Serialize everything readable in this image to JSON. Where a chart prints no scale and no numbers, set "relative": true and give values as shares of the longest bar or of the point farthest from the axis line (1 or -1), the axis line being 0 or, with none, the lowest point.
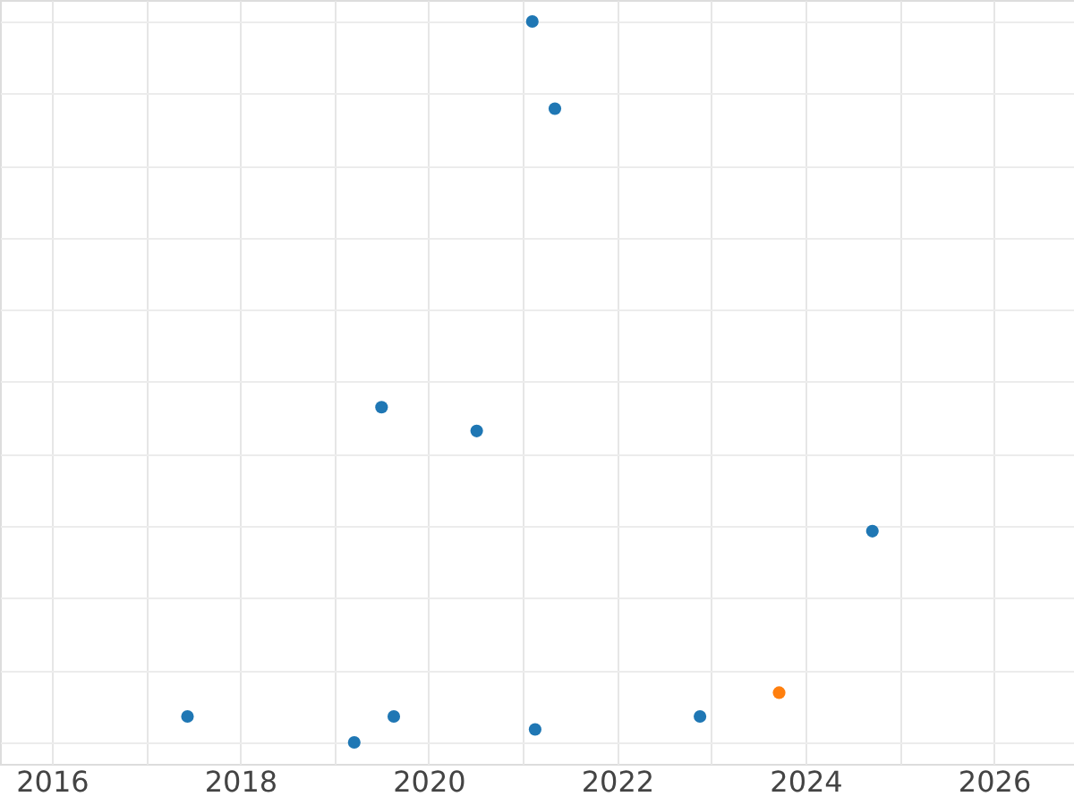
{
  "chart_data": {
    "type": "scatter",
    "relative": true,
    "x": [
      2021.1,
      2021.34,
      2019.5,
      2020.51,
      2024.71,
      2017.44,
      2019.21,
      2019.63,
      2021.13,
      2022.88,
      2023.72
    ],
    "values": [
      1,
      0.879,
      0.465,
      0.432,
      0.293,
      0.036,
      0,
      0.036,
      0.018,
      0.036,
      0.069
    ],
    "colors": [
      "#1f77b4",
      "#1f77b4",
      "#1f77b4",
      "#1f77b4",
      "#1f77b4",
      "#1f77b4",
      "#1f77b4",
      "#1f77b4",
      "#1f77b4",
      "#1f77b4",
      "#ff7f0e"
    ],
    "xlim": [
      2015.45,
      2026.85
    ],
    "xticks": [
      2016,
      {
        "value": 2017,
        "label": null
      },
      2018,
      {
        "value": 2019,
        "label": null
      },
      2020,
      {
        "value": 2021,
        "label": null
      },
      2022,
      {
        "value": 2023,
        "label": null
      },
      2024,
      {
        "value": 2025,
        "label": null
      },
      2026
    ],
    "grid": true,
    "marker": "circle"
  }
}
